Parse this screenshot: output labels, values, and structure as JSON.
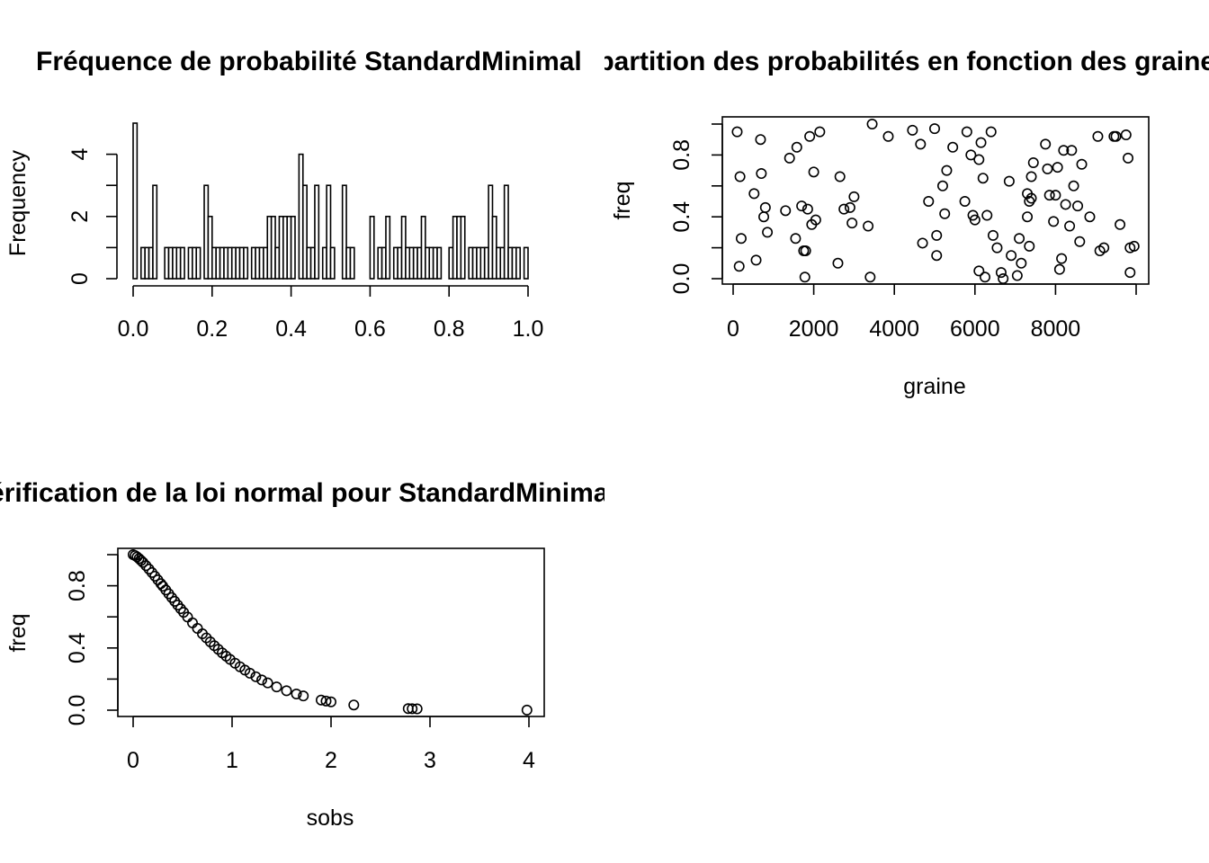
{
  "chart_data": [
    {
      "type": "bar",
      "title": "Fréquence de probabilité StandardMinimal",
      "xlabel": "",
      "ylabel": "Frequency",
      "xlim": [
        0,
        1
      ],
      "ylim": [
        0,
        5
      ],
      "xticks": [
        "0.0",
        "0.2",
        "0.4",
        "0.6",
        "0.8",
        "1.0"
      ],
      "yticks": [
        "0",
        "2",
        "4"
      ],
      "bin_width": 0.01,
      "values": [
        5,
        0,
        1,
        1,
        1,
        3,
        0,
        0,
        1,
        1,
        1,
        1,
        1,
        0,
        1,
        1,
        1,
        0,
        3,
        2,
        1,
        1,
        1,
        1,
        1,
        1,
        1,
        1,
        1,
        0,
        1,
        1,
        1,
        1,
        2,
        2,
        1,
        2,
        2,
        2,
        2,
        0,
        4,
        3,
        1,
        1,
        3,
        0,
        1,
        3,
        1,
        0,
        0,
        3,
        1,
        1,
        0,
        0,
        0,
        0,
        2,
        0,
        1,
        1,
        2,
        0,
        1,
        1,
        2,
        1,
        1,
        1,
        1,
        2,
        1,
        1,
        1,
        1,
        0,
        0,
        1,
        2,
        2,
        2,
        0,
        1,
        1,
        1,
        1,
        1,
        3,
        2,
        1,
        1,
        3,
        1,
        1,
        1,
        0,
        1
      ]
    },
    {
      "type": "scatter",
      "title": "Répartition des probabilités en fonction des graines StandardMinimal",
      "xlabel": "graine",
      "ylabel": "freq",
      "xlim": [
        0,
        10000
      ],
      "ylim": [
        0,
        1
      ],
      "xticks": [
        "0",
        "2000",
        "4000",
        "6000",
        "8000"
      ],
      "yticks": [
        "0.0",
        "0.4",
        "0.8"
      ],
      "x": [
        100,
        150,
        170,
        200,
        520,
        570,
        680,
        700,
        760,
        800,
        850,
        1300,
        1400,
        1550,
        1580,
        1700,
        1750,
        1780,
        1800,
        1850,
        1900,
        1950,
        2000,
        2050,
        2150,
        2600,
        2650,
        2750,
        2900,
        2950,
        3000,
        3350,
        3400,
        3450,
        3850,
        4450,
        4650,
        4700,
        4850,
        5000,
        5050,
        5050,
        5200,
        5250,
        5300,
        5450,
        5750,
        5800,
        5900,
        5950,
        6000,
        6100,
        6100,
        6150,
        6200,
        6250,
        6300,
        6400,
        6450,
        6550,
        6650,
        6700,
        6850,
        6900,
        7050,
        7100,
        7150,
        7300,
        7300,
        7350,
        7350,
        7400,
        7400,
        7450,
        7750,
        7800,
        7850,
        7950,
        8000,
        8050,
        8100,
        8150,
        8200,
        8250,
        8350,
        8400,
        8450,
        8550,
        8600,
        8650,
        8850,
        9050,
        9100,
        9200,
        9450,
        9500,
        9600,
        9750,
        9800,
        9850,
        9850,
        9950
      ]
    },
    {
      "type": "scatter",
      "title": "Vérification de la loi normal pour StandardMinimal",
      "xlabel": "sobs",
      "ylabel": "freq",
      "xlim": [
        0,
        4
      ],
      "ylim": [
        0,
        1
      ],
      "xticks": [
        "0",
        "1",
        "2",
        "3",
        "4"
      ],
      "yticks": [
        "0.0",
        "0.4",
        "0.8"
      ],
      "x": [
        0.0,
        0.02,
        0.04,
        0.06,
        0.08,
        0.1,
        0.13,
        0.16,
        0.19,
        0.22,
        0.25,
        0.28,
        0.3,
        0.33,
        0.36,
        0.39,
        0.42,
        0.45,
        0.48,
        0.51,
        0.55,
        0.6,
        0.65,
        0.7,
        0.74,
        0.78,
        0.82,
        0.86,
        0.9,
        0.94,
        0.98,
        1.03,
        1.08,
        1.13,
        1.18,
        1.24,
        1.3,
        1.36,
        1.45,
        1.55,
        1.65,
        1.72,
        1.9,
        1.95,
        2.0,
        2.23,
        2.78,
        2.82,
        2.87,
        3.98
      ]
    }
  ]
}
